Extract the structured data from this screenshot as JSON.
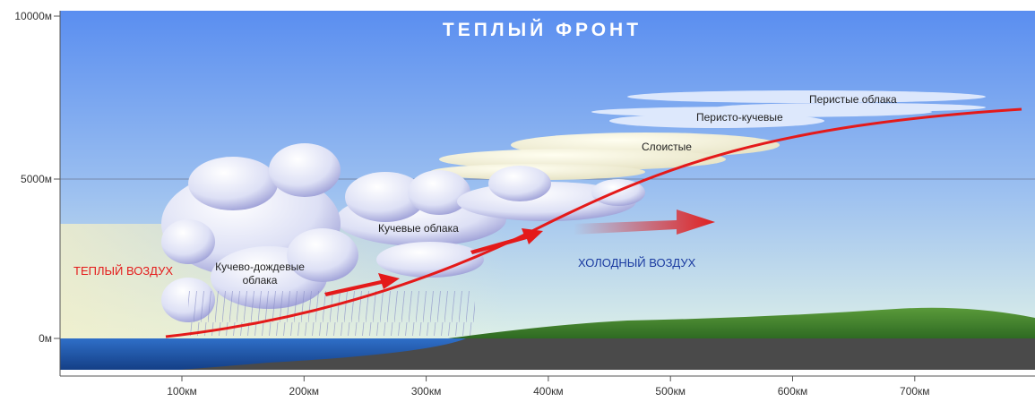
{
  "title": "ТЕПЛЫЙ ФРОНТ",
  "y_axis": {
    "labels": [
      "10000м",
      "5000м",
      "0м"
    ]
  },
  "x_axis": {
    "labels": [
      "100км",
      "200км",
      "300км",
      "400км",
      "500км",
      "600км",
      "700км"
    ]
  },
  "air_masses": {
    "warm": "ТЕПЛЫЙ ВОЗДУХ",
    "cold": "ХОЛОДНЫЙ ВОЗДУХ"
  },
  "clouds": {
    "cirrus": "Перистые облака",
    "cirrocumulus": "Перисто-кучевые",
    "stratus": "Слоистые",
    "cumulus": "Кучевые облака",
    "cumulonimbus": "Кучево-дождевые\nоблака"
  }
}
